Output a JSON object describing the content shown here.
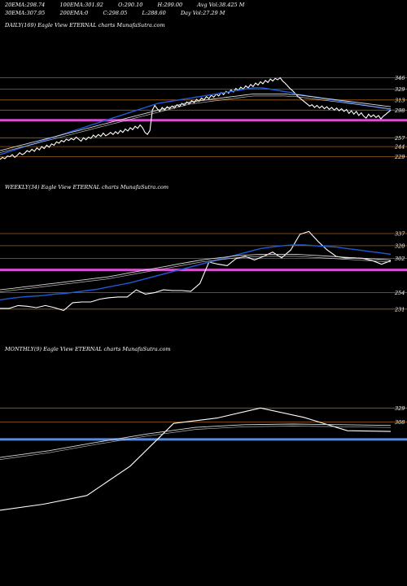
{
  "header": {
    "row1": [
      {
        "label": "20EMA:",
        "value": "298.74"
      },
      {
        "label": "100EMA:",
        "value": "301.92"
      },
      {
        "label": "O:",
        "value": "290.10"
      },
      {
        "label": "H:",
        "value": "299.00"
      },
      {
        "label": "Avg Vol:",
        "value": "38.425 M"
      }
    ],
    "row2": [
      {
        "label": "30EMA:",
        "value": "307.95"
      },
      {
        "label": "200EMA:",
        "value": "0"
      },
      {
        "label": "C:",
        "value": "298.05"
      },
      {
        "label": "L:",
        "value": "288.60"
      },
      {
        "label": "Day Vol:",
        "value": "27.29 M"
      }
    ]
  },
  "colors": {
    "background": "#000000",
    "price": "#ffffff",
    "ema_fast": "#1e5bd6",
    "ema_slow": "#d8d8d8",
    "level": "#a0601a",
    "highlight_magenta": "#d850d0",
    "highlight_blue": "#5b8be0"
  },
  "chart_data": [
    {
      "type": "line",
      "title": "DAILY(169) Eagle  View  ETERNAL  charts MunafaSutra.com",
      "yticks": [
        "346",
        "329",
        "313",
        "298",
        "257",
        "244",
        "229"
      ],
      "ylim": [
        220,
        355
      ],
      "levels": [
        346,
        329,
        313,
        298,
        283,
        257,
        244,
        229
      ],
      "highlight_level": 283,
      "highlight_color": "magenta",
      "series": [
        {
          "role": "price",
          "color": "white",
          "values": [
            225,
            228,
            226,
            230,
            229,
            232,
            228,
            231,
            235,
            232,
            234,
            238,
            236,
            240,
            237,
            242,
            239,
            244,
            241,
            246,
            243,
            248,
            246,
            251,
            249,
            253,
            251,
            255,
            253,
            256,
            254,
            258,
            255,
            252,
            257,
            254,
            258,
            256,
            261,
            258,
            262,
            259,
            264,
            260,
            262,
            265,
            262,
            266,
            263,
            268,
            265,
            270,
            267,
            272,
            269,
            274,
            271,
            276,
            272,
            265,
            262,
            268,
            298,
            305,
            300,
            296,
            302,
            298,
            303,
            300,
            304,
            301,
            306,
            303,
            308,
            305,
            310,
            307,
            312,
            309,
            314,
            311,
            316,
            313,
            318,
            315,
            320,
            317,
            322,
            319,
            324,
            321,
            326,
            323,
            328,
            325,
            330,
            327,
            332,
            329,
            334,
            331,
            336,
            333,
            338,
            335,
            340,
            337,
            342,
            339,
            344,
            341,
            345,
            343,
            346,
            341,
            338,
            334,
            330,
            327,
            323,
            319,
            316,
            313,
            310,
            307,
            304,
            306,
            302,
            305,
            301,
            304,
            300,
            303,
            299,
            302,
            298,
            301,
            297,
            300,
            296,
            299,
            293,
            297,
            292,
            296,
            290,
            294,
            289,
            286,
            292,
            288,
            291,
            287,
            290,
            285,
            289,
            292,
            295,
            298
          ]
        },
        {
          "role": "ema-fast",
          "color": "blue",
          "values": [
            232,
            234,
            236,
            238,
            240,
            242,
            244,
            246,
            248,
            250,
            252,
            254,
            256,
            258,
            260,
            262,
            264,
            266,
            268,
            270,
            272,
            274,
            276,
            278,
            280,
            282,
            284,
            286,
            288,
            290,
            292,
            294,
            296,
            298,
            300,
            302,
            304,
            306,
            308,
            309,
            310,
            311,
            312,
            313,
            314,
            315,
            316,
            317,
            318,
            319,
            320,
            321,
            322,
            323,
            324,
            325,
            326,
            327,
            328,
            329,
            330,
            331,
            331,
            331,
            330,
            329,
            328,
            327,
            326,
            325,
            324,
            322,
            321,
            320,
            319,
            318,
            317,
            316,
            315,
            314,
            313,
            312,
            311,
            310,
            309,
            308,
            307,
            306,
            305,
            304,
            303,
            302,
            301,
            300,
            299
          ]
        },
        {
          "role": "ema-slow",
          "color": "gray",
          "values": [
            238,
            240,
            242,
            244,
            246,
            248,
            250,
            252,
            254,
            256,
            258,
            260,
            262,
            264,
            266,
            268,
            270,
            272,
            274,
            276,
            278,
            280,
            282,
            284,
            286,
            288,
            290,
            292,
            294,
            296,
            298,
            300,
            302,
            304,
            306,
            308,
            310,
            311,
            312,
            313,
            314,
            315,
            316,
            317,
            318,
            319,
            320,
            321,
            322,
            322,
            322,
            322,
            322,
            322,
            322,
            321,
            321,
            320,
            319,
            318,
            317,
            316,
            315,
            314,
            313,
            312,
            311,
            310,
            309,
            308,
            307,
            306,
            305,
            304,
            303
          ]
        }
      ]
    },
    {
      "type": "line",
      "title": "WEEKLY(34) Eagle  View  ETERNAL  charts MunafaSutra.com",
      "yticks": [
        "337",
        "320",
        "302",
        "254",
        "231"
      ],
      "ylim": [
        225,
        345
      ],
      "levels": [
        337,
        320,
        302,
        286,
        254,
        231
      ],
      "highlight_level": 286,
      "highlight_color": "magenta",
      "series": [
        {
          "role": "price",
          "color": "white",
          "values": [
            232,
            232,
            236,
            235,
            233,
            236,
            233,
            229,
            240,
            241,
            241,
            245,
            247,
            248,
            248,
            258,
            252,
            254,
            258,
            257,
            257,
            256,
            267,
            297,
            294,
            292,
            302,
            305,
            300,
            305,
            311,
            303,
            314,
            336,
            340,
            326,
            314,
            305,
            303,
            303,
            302,
            299,
            294,
            299
          ]
        },
        {
          "role": "ema-fast",
          "color": "blue",
          "values": [
            244,
            246,
            248,
            249,
            250,
            252,
            253,
            255,
            257,
            259,
            262,
            265,
            268,
            272,
            276,
            280,
            284,
            288,
            292,
            296,
            300,
            304,
            308,
            312,
            316,
            318,
            320,
            321,
            321,
            320,
            319,
            318,
            316,
            314,
            312,
            310,
            308
          ]
        },
        {
          "role": "ema-slow",
          "color": "gray",
          "values": [
            258,
            260,
            262,
            264,
            266,
            268,
            270,
            272,
            274,
            276,
            279,
            282,
            285,
            288,
            291,
            294,
            297,
            300,
            302,
            304,
            306,
            307,
            308,
            308,
            308,
            308,
            307,
            306,
            305,
            304,
            303,
            302,
            301,
            300
          ]
        }
      ]
    },
    {
      "type": "line",
      "title": "MONTHLY(9) Eagle  View  ETERNAL  charts MunafaSutra.com",
      "yticks": [
        "329",
        "308"
      ],
      "ylim": [
        160,
        355
      ],
      "levels": [
        329,
        308
      ],
      "highlight_level": 282,
      "highlight_color": "blue",
      "series": [
        {
          "role": "price",
          "color": "white",
          "values": [
            176,
            185,
            198,
            242,
            306,
            314,
            329,
            315,
            295,
            294
          ]
        },
        {
          "role": "ema-slow",
          "color": "gray",
          "values": [
            255,
            265,
            278,
            290,
            300,
            304,
            305,
            304,
            303
          ]
        }
      ]
    }
  ]
}
